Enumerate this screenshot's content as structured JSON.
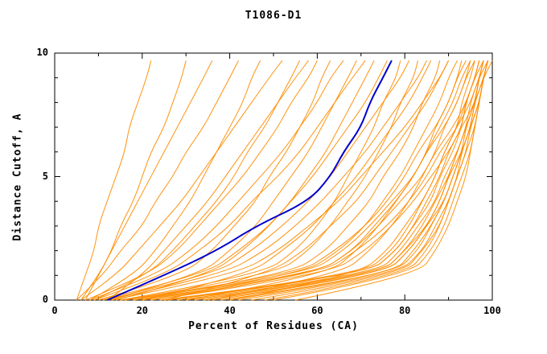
{
  "chart_data": {
    "type": "line",
    "title": "T1086-D1",
    "xlabel": "Percent of Residues (CA)",
    "ylabel": "Distance Cutoff, A",
    "xlim": [
      0,
      100
    ],
    "ylim": [
      0,
      10
    ],
    "x_ticks": [
      0,
      20,
      40,
      60,
      80,
      100
    ],
    "y_ticks": [
      0,
      5,
      10
    ],
    "x_minor_step": 10,
    "y_minor_step": 1,
    "grid": false,
    "legend": "none",
    "colors": {
      "models": "#ff8c00",
      "highlight": "#0000cc",
      "axis": "#000000",
      "background": "#ffffff"
    },
    "cutoffs": [
      0,
      1,
      2,
      3,
      4,
      5,
      6,
      7,
      8,
      9,
      9.7
    ],
    "highlight_series": {
      "name": "highlighted-model",
      "x": [
        12,
        25,
        37,
        46,
        58,
        63,
        66,
        70,
        72,
        75,
        77
      ]
    },
    "model_curves_percent": [
      [
        5,
        7,
        9,
        10,
        12,
        14,
        16,
        17,
        19,
        21,
        22
      ],
      [
        6,
        10,
        13,
        15,
        18,
        20,
        22,
        25,
        27,
        29,
        30
      ],
      [
        7,
        10,
        13,
        16,
        19,
        22,
        25,
        28,
        31,
        34,
        36
      ],
      [
        5,
        11,
        15,
        20,
        23,
        27,
        30,
        34,
        37,
        40,
        42
      ],
      [
        8,
        18,
        23,
        27,
        31,
        34,
        37,
        40,
        43,
        45,
        47
      ],
      [
        6,
        14,
        19,
        24,
        29,
        33,
        37,
        41,
        45,
        49,
        52
      ],
      [
        9,
        21,
        27,
        32,
        37,
        41,
        44,
        48,
        51,
        54,
        56
      ],
      [
        7,
        21,
        28,
        33,
        38,
        43,
        47,
        51,
        54,
        58,
        60
      ],
      [
        10,
        29,
        36,
        41,
        46,
        49,
        53,
        56,
        59,
        61,
        63
      ],
      [
        8,
        23,
        31,
        37,
        42,
        47,
        52,
        56,
        60,
        63,
        66
      ],
      [
        12,
        33,
        40,
        46,
        50,
        54,
        58,
        61,
        64,
        67,
        69
      ],
      [
        9,
        25,
        33,
        40,
        45,
        51,
        56,
        60,
        64,
        68,
        71
      ],
      [
        14,
        35,
        43,
        49,
        54,
        58,
        62,
        65,
        68,
        71,
        73
      ],
      [
        10,
        34,
        42,
        49,
        54,
        59,
        63,
        67,
        71,
        74,
        76
      ],
      [
        15,
        47,
        55,
        60,
        64,
        67,
        70,
        73,
        75,
        78,
        79
      ],
      [
        11,
        36,
        45,
        52,
        58,
        63,
        67,
        71,
        75,
        79,
        81
      ],
      [
        16,
        50,
        58,
        63,
        67,
        71,
        74,
        77,
        79,
        82,
        83
      ],
      [
        12,
        38,
        48,
        55,
        61,
        66,
        71,
        75,
        79,
        83,
        85
      ],
      [
        18,
        53,
        62,
        67,
        72,
        75,
        79,
        82,
        84,
        87,
        88
      ],
      [
        13,
        41,
        51,
        58,
        65,
        70,
        75,
        80,
        84,
        88,
        90
      ],
      [
        20,
        56,
        65,
        71,
        75,
        79,
        82,
        85,
        88,
        90,
        92
      ],
      [
        15,
        55,
        64,
        71,
        76,
        80,
        83,
        87,
        90,
        92,
        94
      ],
      [
        22,
        59,
        68,
        73,
        78,
        82,
        85,
        88,
        91,
        93,
        95
      ],
      [
        16,
        57,
        66,
        72,
        77,
        82,
        85,
        89,
        92,
        94,
        96
      ],
      [
        25,
        71,
        78,
        82,
        85,
        88,
        90,
        93,
        94,
        96,
        97
      ],
      [
        18,
        59,
        68,
        74,
        79,
        84,
        87,
        91,
        94,
        96,
        98
      ],
      [
        28,
        73,
        79,
        83,
        87,
        89,
        92,
        94,
        95,
        97,
        98
      ],
      [
        20,
        60,
        69,
        76,
        81,
        85,
        88,
        92,
        95,
        97,
        99
      ],
      [
        30,
        74,
        80,
        85,
        88,
        90,
        93,
        95,
        96,
        98,
        99
      ],
      [
        22,
        62,
        71,
        77,
        82,
        86,
        90,
        93,
        96,
        98,
        100
      ],
      [
        24,
        70,
        77,
        81,
        84,
        87,
        89,
        92,
        93,
        95,
        96
      ],
      [
        26,
        71,
        78,
        82,
        86,
        88,
        91,
        93,
        94,
        96,
        97
      ],
      [
        32,
        74,
        80,
        84,
        87,
        90,
        92,
        94,
        96,
        97,
        98
      ],
      [
        34,
        75,
        81,
        85,
        89,
        91,
        93,
        95,
        97,
        98,
        99
      ],
      [
        36,
        75,
        81,
        85,
        88,
        90,
        92,
        94,
        96,
        97,
        98
      ],
      [
        38,
        77,
        83,
        86,
        89,
        91,
        93,
        95,
        97,
        98,
        99
      ],
      [
        40,
        77,
        82,
        86,
        89,
        91,
        93,
        94,
        96,
        97,
        98
      ],
      [
        42,
        78,
        84,
        87,
        90,
        92,
        94,
        95,
        97,
        98,
        99
      ],
      [
        45,
        79,
        84,
        88,
        90,
        92,
        94,
        96,
        97,
        98,
        99
      ],
      [
        48,
        80,
        85,
        88,
        90,
        92,
        93,
        95,
        96,
        97,
        98
      ],
      [
        50,
        81,
        86,
        89,
        91,
        93,
        95,
        96,
        97,
        98,
        99
      ],
      [
        55,
        83,
        87,
        90,
        92,
        94,
        95,
        96,
        97,
        98,
        99
      ],
      [
        12,
        20,
        25,
        30,
        35,
        39,
        43,
        47,
        51,
        55,
        58
      ],
      [
        25,
        48,
        57,
        63,
        69,
        73,
        77,
        81,
        85,
        88,
        90
      ],
      [
        30,
        62,
        69,
        74,
        78,
        82,
        85,
        87,
        90,
        92,
        93
      ],
      [
        35,
        65,
        72,
        77,
        81,
        84,
        87,
        89,
        92,
        94,
        95
      ],
      [
        40,
        69,
        76,
        80,
        84,
        87,
        89,
        92,
        94,
        96,
        97
      ],
      [
        20,
        44,
        52,
        59,
        64,
        69,
        73,
        77,
        81,
        84,
        86
      ]
    ]
  }
}
